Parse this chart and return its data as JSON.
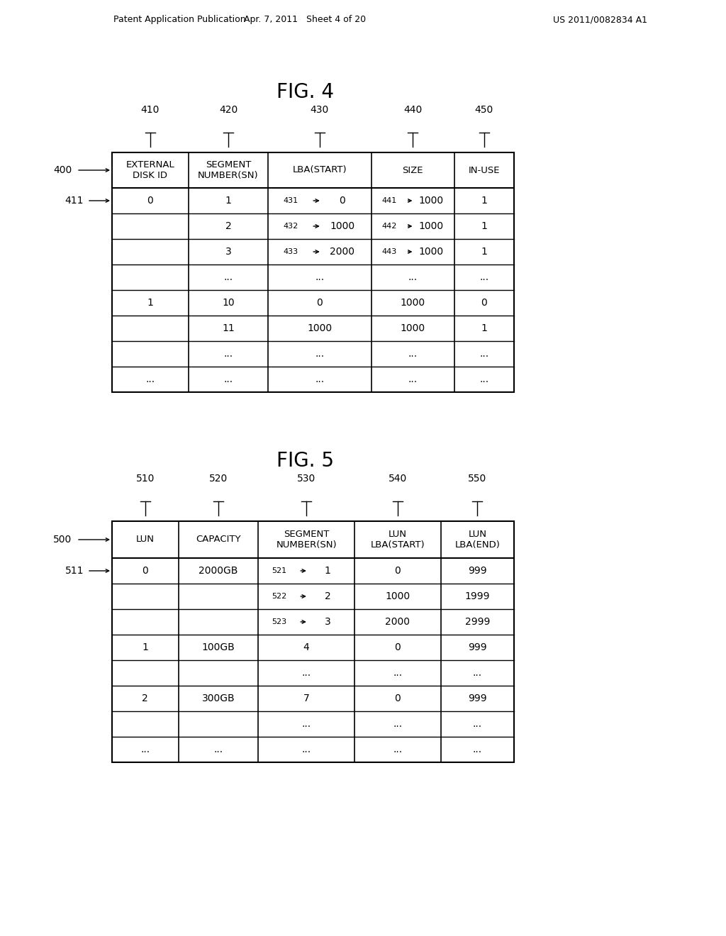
{
  "header_text_left": "Patent Application Publication",
  "header_text_mid": "Apr. 7, 2011   Sheet 4 of 20",
  "header_text_right": "US 2011/0082834 A1",
  "fig4_title": "FIG. 4",
  "fig5_title": "FIG. 5",
  "fig4_col_labels": [
    "EXTERNAL\nDISK ID",
    "SEGMENT\nNUMBER(SN)",
    "LBA(START)",
    "SIZE",
    "IN-USE"
  ],
  "fig4_col_ids": [
    "410",
    "420",
    "430",
    "440",
    "450"
  ],
  "fig4_table_label": "400",
  "fig4_row0_label": "411",
  "fig4_rows": [
    [
      "0",
      "1",
      "0",
      "1000",
      "1",
      "431",
      "441"
    ],
    [
      "",
      "2",
      "1000",
      "1000",
      "1",
      "432",
      "442"
    ],
    [
      "",
      "3",
      "2000",
      "1000",
      "1",
      "433",
      "443"
    ],
    [
      "",
      "...",
      "...",
      "...",
      "...",
      "",
      ""
    ],
    [
      "1",
      "10",
      "0",
      "1000",
      "0",
      "",
      ""
    ],
    [
      "",
      "11",
      "1000",
      "1000",
      "1",
      "",
      ""
    ],
    [
      "",
      "...",
      "...",
      "...",
      "...",
      "",
      ""
    ],
    [
      "...",
      "...",
      "...",
      "...",
      "...",
      "",
      ""
    ]
  ],
  "fig5_col_labels": [
    "LUN",
    "CAPACITY",
    "SEGMENT\nNUMBER(SN)",
    "LUN\nLBA(START)",
    "LUN\nLBA(END)"
  ],
  "fig5_col_ids": [
    "510",
    "520",
    "530",
    "540",
    "550"
  ],
  "fig5_table_label": "500",
  "fig5_row0_label": "511",
  "fig5_rows": [
    [
      "0",
      "2000GB",
      "1",
      "0",
      "999",
      "521"
    ],
    [
      "",
      "",
      "2",
      "1000",
      "1999",
      "522"
    ],
    [
      "",
      "",
      "3",
      "2000",
      "2999",
      "523"
    ],
    [
      "1",
      "100GB",
      "4",
      "0",
      "999",
      ""
    ],
    [
      "",
      "",
      "...",
      "...",
      "...",
      ""
    ],
    [
      "2",
      "300GB",
      "7",
      "0",
      "999",
      ""
    ],
    [
      "",
      "",
      "...",
      "...",
      "...",
      ""
    ],
    [
      "...",
      "...",
      "...",
      "...",
      "...",
      ""
    ]
  ],
  "bg_color": "#ffffff",
  "line_color": "#000000",
  "text_color": "#000000"
}
